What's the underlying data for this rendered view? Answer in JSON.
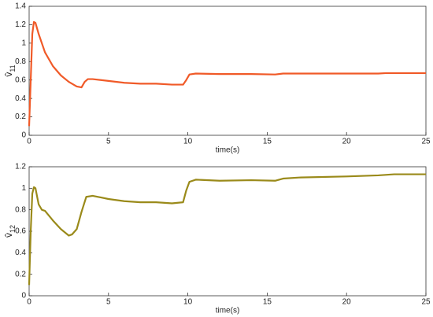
{
  "chart_data": [
    {
      "type": "line",
      "ylabel": {
        "base": "v̂",
        "sub": "11"
      },
      "xlabel": "time(s)",
      "xlim": [
        0,
        25
      ],
      "xticks": [
        0,
        5,
        10,
        15,
        20,
        25
      ],
      "ylim": [
        0,
        1.4
      ],
      "yticks": [
        0,
        0.2,
        0.4,
        0.6,
        0.8,
        1,
        1.2,
        1.4
      ],
      "x": [
        0,
        0.1,
        0.2,
        0.3,
        0.4,
        0.6,
        1,
        1.5,
        2,
        2.5,
        3,
        3.3,
        3.5,
        3.7,
        4,
        5,
        6,
        7,
        8,
        9,
        9.7,
        9.9,
        10.1,
        10.5,
        12,
        14,
        15.5,
        16,
        18,
        20,
        22,
        22.5,
        25
      ],
      "series": [
        {
          "color": "#f05a28",
          "values": [
            0.1,
            0.6,
            1.1,
            1.23,
            1.22,
            1.1,
            0.9,
            0.75,
            0.65,
            0.58,
            0.53,
            0.52,
            0.58,
            0.61,
            0.61,
            0.59,
            0.57,
            0.56,
            0.56,
            0.55,
            0.55,
            0.6,
            0.66,
            0.67,
            0.665,
            0.665,
            0.66,
            0.67,
            0.67,
            0.67,
            0.67,
            0.675,
            0.675
          ]
        }
      ]
    },
    {
      "type": "line",
      "ylabel": {
        "base": "v̂",
        "sub": "12"
      },
      "xlabel": "time(s)",
      "xlim": [
        0,
        25
      ],
      "xticks": [
        0,
        5,
        10,
        15,
        20,
        25
      ],
      "ylim": [
        0,
        1.2
      ],
      "yticks": [
        0,
        0.2,
        0.4,
        0.6,
        0.8,
        1,
        1.2
      ],
      "x": [
        0,
        0.1,
        0.2,
        0.3,
        0.4,
        0.6,
        0.8,
        1,
        1.5,
        2,
        2.5,
        2.7,
        3,
        3.3,
        3.6,
        4,
        5,
        6,
        7,
        8,
        9,
        9.7,
        9.9,
        10.1,
        10.5,
        12,
        14,
        15.5,
        16,
        17,
        20,
        22,
        23,
        25
      ],
      "series": [
        {
          "color": "#9a8a1a",
          "values": [
            0.1,
            0.6,
            0.95,
            1.01,
            1.0,
            0.85,
            0.8,
            0.79,
            0.7,
            0.62,
            0.56,
            0.57,
            0.62,
            0.78,
            0.92,
            0.93,
            0.9,
            0.88,
            0.87,
            0.87,
            0.86,
            0.87,
            0.98,
            1.06,
            1.08,
            1.07,
            1.075,
            1.07,
            1.09,
            1.1,
            1.11,
            1.12,
            1.13,
            1.13
          ]
        }
      ]
    }
  ]
}
